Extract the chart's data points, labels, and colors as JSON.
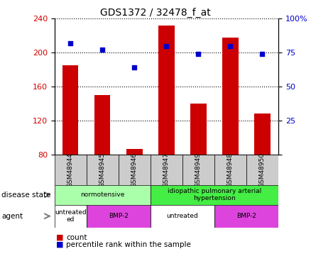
{
  "title": "GDS1372 / 32478_f_at",
  "samples": [
    "GSM48944",
    "GSM48945",
    "GSM48946",
    "GSM48947",
    "GSM48949",
    "GSM48948",
    "GSM48950"
  ],
  "bar_values": [
    185,
    150,
    86,
    232,
    140,
    218,
    128
  ],
  "dot_values_pct": [
    82,
    77,
    64,
    80,
    74,
    80,
    74
  ],
  "bar_bottom": 80,
  "ylim_left": [
    80,
    240
  ],
  "ylim_right": [
    0,
    100
  ],
  "yticks_left": [
    80,
    120,
    160,
    200,
    240
  ],
  "yticks_right": [
    0,
    25,
    50,
    75,
    100
  ],
  "bar_color": "#cc0000",
  "dot_color": "#0000cc",
  "disease_state_groups": [
    {
      "label": "normotensive",
      "start": 0,
      "end": 3,
      "color": "#aaffaa"
    },
    {
      "label": "idiopathic pulmonary arterial\nhypertension",
      "start": 3,
      "end": 7,
      "color": "#44ee44"
    }
  ],
  "agent_groups": [
    {
      "label": "untreated\ned",
      "start": 0,
      "end": 1,
      "color": "#ffffff"
    },
    {
      "label": "BMP-2",
      "start": 1,
      "end": 3,
      "color": "#dd44dd"
    },
    {
      "label": "untreated",
      "start": 3,
      "end": 5,
      "color": "#ffffff"
    },
    {
      "label": "BMP-2",
      "start": 5,
      "end": 7,
      "color": "#dd44dd"
    }
  ],
  "legend_count_color": "#cc0000",
  "legend_dot_color": "#0000cc",
  "left_tick_color": "#cc0000",
  "right_tick_color": "#0000cc",
  "sample_bg_color": "#cccccc",
  "grid_line_style": ":"
}
